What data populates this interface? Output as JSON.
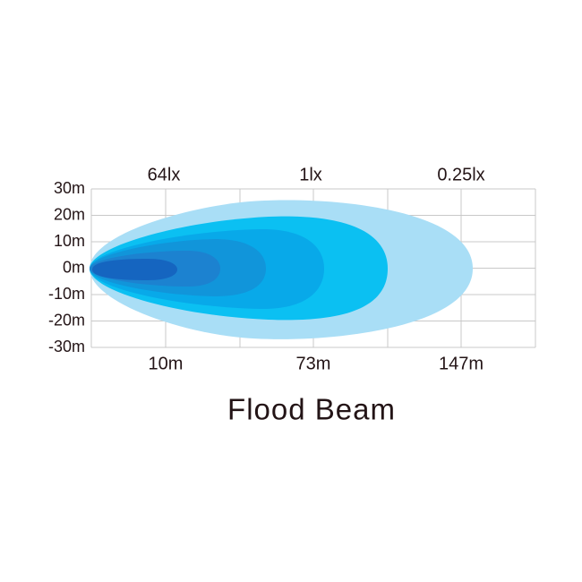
{
  "title": "Flood Beam",
  "y_axis": {
    "labels": [
      "30m",
      "20m",
      "10m",
      "0m",
      "-10m",
      "-20m",
      "-30m"
    ]
  },
  "lux_labels": [
    "64lx",
    "1lx",
    "0.25lx"
  ],
  "distance_labels": [
    "10m",
    "73m",
    "147m"
  ]
}
